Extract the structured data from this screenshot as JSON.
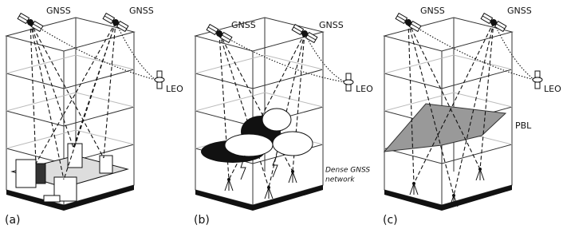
{
  "panels": [
    {
      "label": "(a)",
      "satellites": [
        "GNSS",
        "GNSS"
      ],
      "leo": "LEO"
    },
    {
      "label": "(b)",
      "satellites": [
        "GNSS",
        "GNSS"
      ],
      "leo": "LEO",
      "annotation": [
        "Dense GNSS",
        "network"
      ]
    },
    {
      "label": "(c)",
      "satellites": [
        "GNSS",
        "GNSS"
      ],
      "leo": "LEO",
      "annotation": [
        "PBL"
      ]
    }
  ]
}
